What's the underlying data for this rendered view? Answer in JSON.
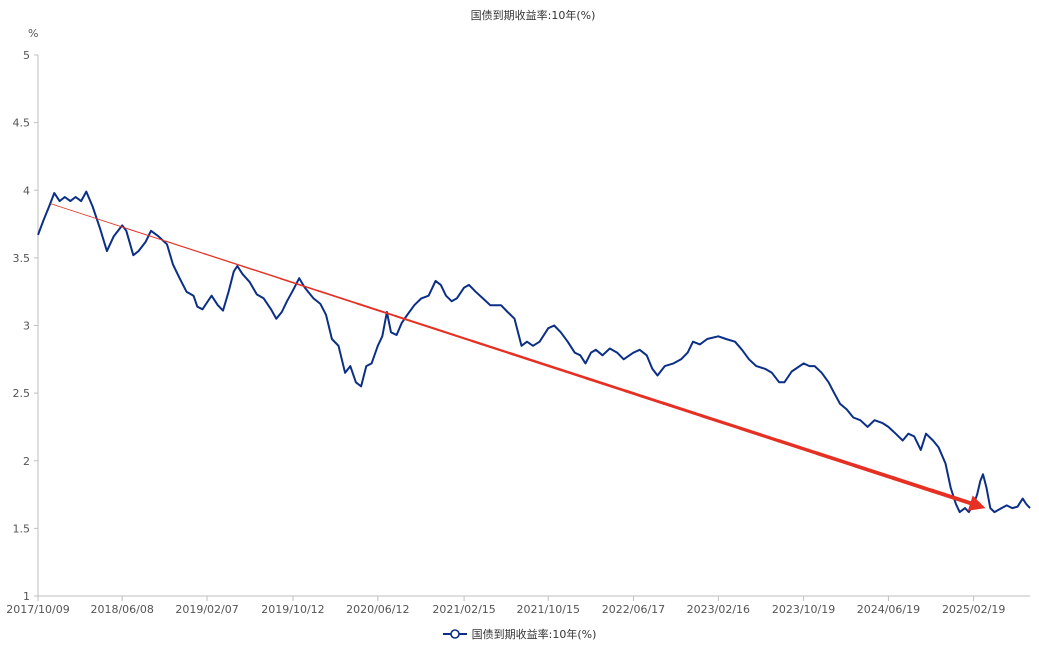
{
  "chart_data": {
    "type": "line",
    "title": "国债到期收益率:10年(%)",
    "y_unit": "%",
    "ylim": [
      1,
      5
    ],
    "y_ticks": [
      "1",
      "1.5",
      "2",
      "2.5",
      "3",
      "3.5",
      "4",
      "4.5",
      "5"
    ],
    "x_tick_labels": [
      "2017/10/09",
      "2018/06/08",
      "2019/02/07",
      "2019/10/12",
      "2020/06/12",
      "2021/02/15",
      "2021/10/15",
      "2022/06/17",
      "2023/02/16",
      "2023/10/19",
      "2024/06/19",
      "2025/02/19"
    ],
    "xlim": [
      "2017/10/09",
      "2025/07/31"
    ],
    "grid": false,
    "legend_position": "bottom",
    "series": [
      {
        "name": "国债到期收益率:10年(%)",
        "color": "#0b2f87",
        "points": [
          [
            "2017/10/09",
            3.67
          ],
          [
            "2017/10/25",
            3.78
          ],
          [
            "2017/11/10",
            3.88
          ],
          [
            "2017/11/25",
            3.98
          ],
          [
            "2017/12/10",
            3.92
          ],
          [
            "2017/12/25",
            3.95
          ],
          [
            "2018/01/10",
            3.92
          ],
          [
            "2018/01/25",
            3.95
          ],
          [
            "2018/02/10",
            3.92
          ],
          [
            "2018/02/25",
            3.99
          ],
          [
            "2018/03/15",
            3.88
          ],
          [
            "2018/04/05",
            3.72
          ],
          [
            "2018/04/25",
            3.55
          ],
          [
            "2018/05/15",
            3.66
          ],
          [
            "2018/06/08",
            3.74
          ],
          [
            "2018/06/20",
            3.7
          ],
          [
            "2018/07/10",
            3.52
          ],
          [
            "2018/07/25",
            3.55
          ],
          [
            "2018/08/15",
            3.62
          ],
          [
            "2018/08/30",
            3.7
          ],
          [
            "2018/09/20",
            3.66
          ],
          [
            "2018/10/15",
            3.6
          ],
          [
            "2018/11/01",
            3.45
          ],
          [
            "2018/11/20",
            3.35
          ],
          [
            "2018/12/10",
            3.25
          ],
          [
            "2018/12/30",
            3.22
          ],
          [
            "2019/01/10",
            3.14
          ],
          [
            "2019/01/25",
            3.12
          ],
          [
            "2019/02/07",
            3.17
          ],
          [
            "2019/02/20",
            3.22
          ],
          [
            "2019/03/10",
            3.15
          ],
          [
            "2019/03/25",
            3.11
          ],
          [
            "2019/04/10",
            3.25
          ],
          [
            "2019/04/25",
            3.4
          ],
          [
            "2019/05/05",
            3.44
          ],
          [
            "2019/05/20",
            3.38
          ],
          [
            "2019/06/10",
            3.32
          ],
          [
            "2019/06/30",
            3.23
          ],
          [
            "2019/07/20",
            3.2
          ],
          [
            "2019/08/10",
            3.12
          ],
          [
            "2019/08/25",
            3.05
          ],
          [
            "2019/09/10",
            3.1
          ],
          [
            "2019/09/25",
            3.18
          ],
          [
            "2019/10/12",
            3.26
          ],
          [
            "2019/10/30",
            3.35
          ],
          [
            "2019/11/15",
            3.28
          ],
          [
            "2019/12/10",
            3.2
          ],
          [
            "2019/12/30",
            3.16
          ],
          [
            "2020/01/15",
            3.08
          ],
          [
            "2020/02/01",
            2.9
          ],
          [
            "2020/02/20",
            2.85
          ],
          [
            "2020/03/10",
            2.65
          ],
          [
            "2020/03/25",
            2.7
          ],
          [
            "2020/04/10",
            2.58
          ],
          [
            "2020/04/25",
            2.55
          ],
          [
            "2020/05/10",
            2.7
          ],
          [
            "2020/05/25",
            2.72
          ],
          [
            "2020/06/12",
            2.85
          ],
          [
            "2020/06/25",
            2.92
          ],
          [
            "2020/07/08",
            3.1
          ],
          [
            "2020/07/20",
            2.95
          ],
          [
            "2020/08/05",
            2.93
          ],
          [
            "2020/08/20",
            3.02
          ],
          [
            "2020/09/05",
            3.08
          ],
          [
            "2020/09/25",
            3.15
          ],
          [
            "2020/10/15",
            3.2
          ],
          [
            "2020/11/05",
            3.22
          ],
          [
            "2020/11/25",
            3.33
          ],
          [
            "2020/12/10",
            3.3
          ],
          [
            "2020/12/25",
            3.22
          ],
          [
            "2021/01/10",
            3.18
          ],
          [
            "2021/01/25",
            3.2
          ],
          [
            "2021/02/15",
            3.28
          ],
          [
            "2021/03/01",
            3.3
          ],
          [
            "2021/03/20",
            3.25
          ],
          [
            "2021/04/10",
            3.2
          ],
          [
            "2021/05/01",
            3.15
          ],
          [
            "2021/06/01",
            3.15
          ],
          [
            "2021/06/20",
            3.1
          ],
          [
            "2021/07/10",
            3.05
          ],
          [
            "2021/07/30",
            2.85
          ],
          [
            "2021/08/15",
            2.88
          ],
          [
            "2021/09/01",
            2.85
          ],
          [
            "2021/09/20",
            2.88
          ],
          [
            "2021/10/15",
            2.98
          ],
          [
            "2021/11/01",
            3.0
          ],
          [
            "2021/11/20",
            2.95
          ],
          [
            "2021/12/10",
            2.88
          ],
          [
            "2021/12/30",
            2.8
          ],
          [
            "2022/01/15",
            2.78
          ],
          [
            "2022/01/30",
            2.72
          ],
          [
            "2022/02/15",
            2.8
          ],
          [
            "2022/03/01",
            2.82
          ],
          [
            "2022/03/20",
            2.78
          ],
          [
            "2022/04/10",
            2.83
          ],
          [
            "2022/05/01",
            2.8
          ],
          [
            "2022/05/20",
            2.75
          ],
          [
            "2022/06/17",
            2.8
          ],
          [
            "2022/07/05",
            2.82
          ],
          [
            "2022/07/25",
            2.78
          ],
          [
            "2022/08/10",
            2.68
          ],
          [
            "2022/08/25",
            2.63
          ],
          [
            "2022/09/15",
            2.7
          ],
          [
            "2022/10/10",
            2.72
          ],
          [
            "2022/11/01",
            2.75
          ],
          [
            "2022/11/20",
            2.8
          ],
          [
            "2022/12/05",
            2.88
          ],
          [
            "2022/12/25",
            2.86
          ],
          [
            "2023/01/15",
            2.9
          ],
          [
            "2023/02/16",
            2.92
          ],
          [
            "2023/03/10",
            2.9
          ],
          [
            "2023/04/05",
            2.88
          ],
          [
            "2023/04/25",
            2.82
          ],
          [
            "2023/05/15",
            2.75
          ],
          [
            "2023/06/05",
            2.7
          ],
          [
            "2023/06/30",
            2.68
          ],
          [
            "2023/07/20",
            2.65
          ],
          [
            "2023/08/10",
            2.58
          ],
          [
            "2023/08/25",
            2.58
          ],
          [
            "2023/09/15",
            2.66
          ],
          [
            "2023/10/19",
            2.72
          ],
          [
            "2023/11/05",
            2.7
          ],
          [
            "2023/11/20",
            2.7
          ],
          [
            "2023/12/10",
            2.65
          ],
          [
            "2023/12/30",
            2.58
          ],
          [
            "2024/01/15",
            2.5
          ],
          [
            "2024/02/01",
            2.42
          ],
          [
            "2024/02/20",
            2.38
          ],
          [
            "2024/03/10",
            2.32
          ],
          [
            "2024/03/30",
            2.3
          ],
          [
            "2024/04/20",
            2.25
          ],
          [
            "2024/05/10",
            2.3
          ],
          [
            "2024/06/01",
            2.28
          ],
          [
            "2024/06/19",
            2.25
          ],
          [
            "2024/07/10",
            2.2
          ],
          [
            "2024/07/30",
            2.15
          ],
          [
            "2024/08/15",
            2.2
          ],
          [
            "2024/09/01",
            2.18
          ],
          [
            "2024/09/20",
            2.08
          ],
          [
            "2024/10/05",
            2.2
          ],
          [
            "2024/10/25",
            2.15
          ],
          [
            "2024/11/10",
            2.1
          ],
          [
            "2024/11/30",
            1.98
          ],
          [
            "2024/12/15",
            1.8
          ],
          [
            "2024/12/30",
            1.68
          ],
          [
            "2025/01/10",
            1.62
          ],
          [
            "2025/01/25",
            1.65
          ],
          [
            "2025/02/05",
            1.62
          ],
          [
            "2025/02/19",
            1.68
          ],
          [
            "2025/03/01",
            1.75
          ],
          [
            "2025/03/10",
            1.85
          ],
          [
            "2025/03/18",
            1.9
          ],
          [
            "2025/03/28",
            1.8
          ],
          [
            "2025/04/08",
            1.65
          ],
          [
            "2025/04/20",
            1.62
          ],
          [
            "2025/05/10",
            1.65
          ],
          [
            "2025/05/25",
            1.67
          ],
          [
            "2025/06/10",
            1.65
          ],
          [
            "2025/06/25",
            1.66
          ],
          [
            "2025/07/10",
            1.72
          ],
          [
            "2025/07/20",
            1.68
          ],
          [
            "2025/07/31",
            1.65
          ]
        ]
      }
    ],
    "annotation_arrow": {
      "color": "#e53023",
      "from": [
        "2017/11/15",
        3.9
      ],
      "to": [
        "2025/03/25",
        1.65
      ]
    }
  }
}
